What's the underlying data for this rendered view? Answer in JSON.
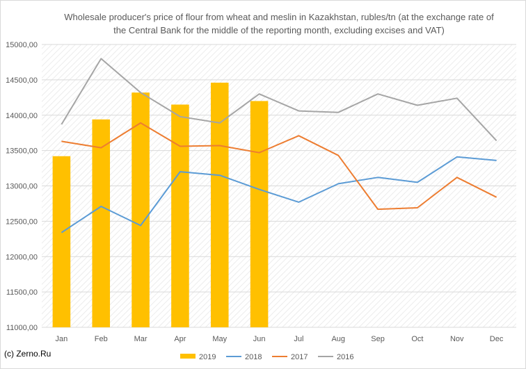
{
  "chart_data": {
    "type": "bar",
    "title": "Wholesale producer's price of flour from wheat and meslin in Kazakhstan, rubles/tn (at the exchange rate of the Central Bank for the middle of the reporting month, excluding excises and VAT)",
    "xlabel": "",
    "ylabel": "",
    "categories": [
      "Jan",
      "Feb",
      "Mar",
      "Apr",
      "May",
      "Jun",
      "Jul",
      "Aug",
      "Sep",
      "Oct",
      "Nov",
      "Dec"
    ],
    "ylim": [
      11000,
      15000
    ],
    "yticks": [
      11000,
      11500,
      12000,
      12500,
      13000,
      13500,
      14000,
      14500,
      15000
    ],
    "ytick_labels": [
      "11000,00",
      "11500,00",
      "12000,00",
      "12500,00",
      "13000,00",
      "13500,00",
      "14000,00",
      "14500,00",
      "15000,00"
    ],
    "grid": "horizontal",
    "legend_position": "bottom",
    "series": [
      {
        "name": "2019",
        "type": "bar",
        "color": "#ffc000",
        "values": [
          13420,
          13940,
          14320,
          14150,
          14460,
          14200,
          null,
          null,
          null,
          null,
          null,
          null
        ]
      },
      {
        "name": "2018",
        "type": "line",
        "color": "#5b9bd5",
        "values": [
          12340,
          12710,
          12440,
          13200,
          13150,
          12950,
          12770,
          13030,
          13120,
          13050,
          13410,
          13360
        ]
      },
      {
        "name": "2017",
        "type": "line",
        "color": "#ed7d31",
        "values": [
          13630,
          13540,
          13890,
          13560,
          13570,
          13470,
          13710,
          13430,
          12670,
          12690,
          13120,
          12840
        ]
      },
      {
        "name": "2016",
        "type": "line",
        "color": "#a5a5a5",
        "values": [
          13870,
          14800,
          14320,
          13980,
          13890,
          14300,
          14060,
          14040,
          14300,
          14140,
          14240,
          13640
        ]
      }
    ]
  },
  "credit": "(c) Zerno.Ru"
}
